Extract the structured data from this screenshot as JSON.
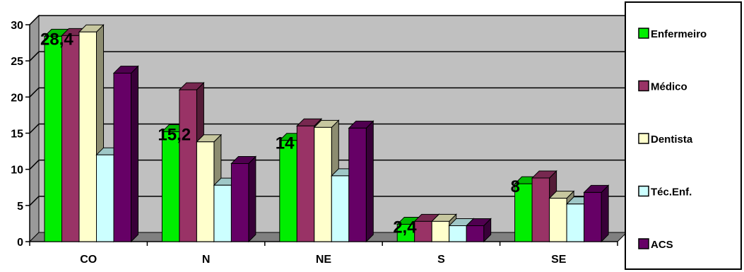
{
  "chart_data": {
    "type": "bar",
    "categories": [
      "CO",
      "N",
      "NE",
      "S",
      "SE"
    ],
    "series": [
      {
        "name": "Enfermeiro",
        "values": [
          28.4,
          15.2,
          14,
          2.4,
          8
        ],
        "color": "#00ee00"
      },
      {
        "name": "Médico",
        "values": [
          28.5,
          21,
          16,
          2.8,
          8.8
        ],
        "color": "#993366"
      },
      {
        "name": "Dentista",
        "values": [
          29,
          13.8,
          15.8,
          2.8,
          6
        ],
        "color": "#ffffcc"
      },
      {
        "name": "Téc.Enf.",
        "values": [
          12,
          7.8,
          9.1,
          2.2,
          5.2
        ],
        "color": "#ccffff"
      },
      {
        "name": "ACS",
        "values": [
          23.3,
          10.8,
          15.7,
          2.2,
          6.8
        ],
        "color": "#660066"
      }
    ],
    "data_labels": [
      {
        "series": "Enfermeiro",
        "category": "CO",
        "text": "28,4"
      },
      {
        "series": "Enfermeiro",
        "category": "N",
        "text": "15,2"
      },
      {
        "series": "Enfermeiro",
        "category": "NE",
        "text": "14"
      },
      {
        "series": "Enfermeiro",
        "category": "S",
        "text": "2,4"
      },
      {
        "series": "Enfermeiro",
        "category": "SE",
        "text": "8"
      }
    ],
    "y_ticks": [
      "0",
      "5",
      "10",
      "15",
      "20",
      "25",
      "30"
    ],
    "ylim": [
      0,
      30
    ],
    "y_step": 5,
    "grid": true,
    "legend_position": "right",
    "title": "",
    "xlabel": "",
    "ylabel": "",
    "plot_background": "#c0c0c0"
  }
}
